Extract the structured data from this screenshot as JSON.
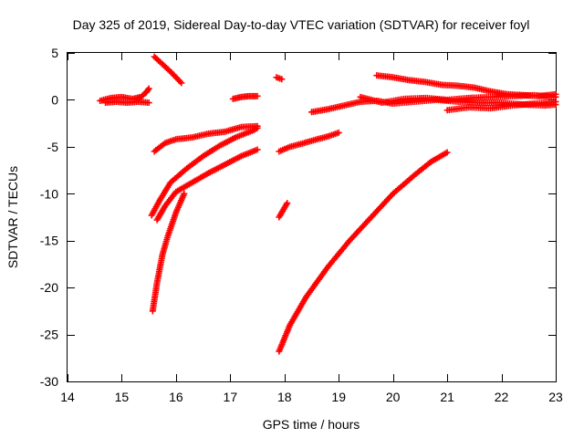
{
  "chart_data": {
    "type": "scatter",
    "title": "Day 325 of 2019, Sidereal Day-to-day VTEC variation (SDTVAR) for receiver foyl",
    "xlabel": "GPS time / hours",
    "ylabel": "SDTVAR / TECUs",
    "xlim": [
      14,
      23
    ],
    "ylim": [
      -30,
      5
    ],
    "xticks": [
      "14",
      "15",
      "16",
      "17",
      "18",
      "19",
      "20",
      "21",
      "22",
      "23"
    ],
    "yticks": [
      "5",
      "0",
      "-5",
      "-10",
      "-15",
      "-20",
      "-25",
      "-30"
    ],
    "grid": false,
    "marker": "+",
    "color": "#ff0000",
    "series": [
      {
        "x": [
          14.6,
          14.8,
          15.0,
          15.2,
          15.35,
          15.45,
          15.5
        ],
        "y": [
          -0.1,
          0.2,
          0.3,
          0.1,
          0.3,
          0.8,
          1.2
        ]
      },
      {
        "x": [
          14.7,
          14.9,
          15.1,
          15.3,
          15.5
        ],
        "y": [
          -0.3,
          -0.2,
          -0.3,
          -0.2,
          -0.3
        ]
      },
      {
        "x": [
          15.6,
          15.75,
          15.9,
          16.0,
          16.1
        ],
        "y": [
          4.6,
          3.8,
          3.0,
          2.4,
          1.8
        ]
      },
      {
        "x": [
          17.05,
          17.2,
          17.35,
          17.5
        ],
        "y": [
          0.1,
          0.3,
          0.4,
          0.4
        ]
      },
      {
        "x": [
          17.85,
          17.95
        ],
        "y": [
          2.4,
          2.2
        ]
      },
      {
        "x": [
          15.6,
          15.8,
          16.0,
          16.3,
          16.6,
          16.9,
          17.2,
          17.5
        ],
        "y": [
          -5.5,
          -4.6,
          -4.2,
          -4.0,
          -3.6,
          -3.4,
          -2.9,
          -2.8
        ]
      },
      {
        "x": [
          15.55,
          15.7,
          15.9,
          16.2,
          16.5,
          16.8,
          17.1,
          17.4,
          17.5
        ],
        "y": [
          -12.3,
          -10.7,
          -8.8,
          -7.3,
          -6.0,
          -4.9,
          -4.0,
          -3.3,
          -3.0
        ]
      },
      {
        "x": [
          15.65,
          15.8,
          16.0,
          16.3,
          16.6,
          16.9,
          17.2,
          17.5
        ],
        "y": [
          -12.8,
          -11.3,
          -9.8,
          -8.8,
          -7.8,
          -6.9,
          -6.0,
          -5.3
        ]
      },
      {
        "x": [
          15.57,
          15.65,
          15.75,
          15.85,
          16.0,
          16.15
        ],
        "y": [
          -22.5,
          -19.5,
          -16.5,
          -14.5,
          -12.0,
          -10.0
        ]
      },
      {
        "x": [
          17.9,
          18.05
        ],
        "y": [
          -12.5,
          -11.0
        ]
      },
      {
        "x": [
          17.9,
          18.1,
          18.3,
          18.6,
          18.8,
          19.0
        ],
        "y": [
          -5.5,
          -5.0,
          -4.7,
          -4.2,
          -3.9,
          -3.5
        ]
      },
      {
        "x": [
          18.5,
          18.8,
          19.1,
          19.4,
          19.7,
          20.0,
          20.4,
          20.8,
          21.2,
          21.6,
          22.0,
          22.4,
          22.8,
          23.0
        ],
        "y": [
          -1.3,
          -1.0,
          -0.6,
          -0.2,
          -0.1,
          -0.4,
          -0.2,
          0.0,
          -0.2,
          -0.3,
          -0.3,
          -0.5,
          -0.6,
          -0.5
        ]
      },
      {
        "x": [
          19.7,
          20.0,
          20.3,
          20.6,
          20.9,
          21.2,
          21.5,
          21.8,
          22.1,
          22.4,
          22.7,
          23.0
        ],
        "y": [
          2.6,
          2.4,
          2.1,
          1.9,
          1.6,
          1.5,
          1.3,
          0.9,
          0.6,
          0.5,
          0.4,
          0.6
        ]
      },
      {
        "x": [
          19.4,
          19.8,
          20.2,
          20.6,
          21.0,
          21.4,
          21.8,
          22.2,
          22.6,
          23.0
        ],
        "y": [
          0.3,
          -0.3,
          0.1,
          0.2,
          0.0,
          0.2,
          0.3,
          0.4,
          0.5,
          0.3
        ]
      },
      {
        "x": [
          21.0,
          21.4,
          21.8,
          22.2,
          22.6,
          23.0
        ],
        "y": [
          -1.1,
          -0.8,
          -0.9,
          -0.6,
          -0.4,
          -0.2
        ]
      },
      {
        "x": [
          17.9,
          18.1,
          18.4,
          18.8,
          19.2,
          19.6,
          20.0,
          20.4,
          20.7,
          21.0
        ],
        "y": [
          -26.8,
          -24.0,
          -21.0,
          -17.8,
          -15.0,
          -12.5,
          -10.0,
          -8.0,
          -6.6,
          -5.6
        ]
      }
    ]
  }
}
